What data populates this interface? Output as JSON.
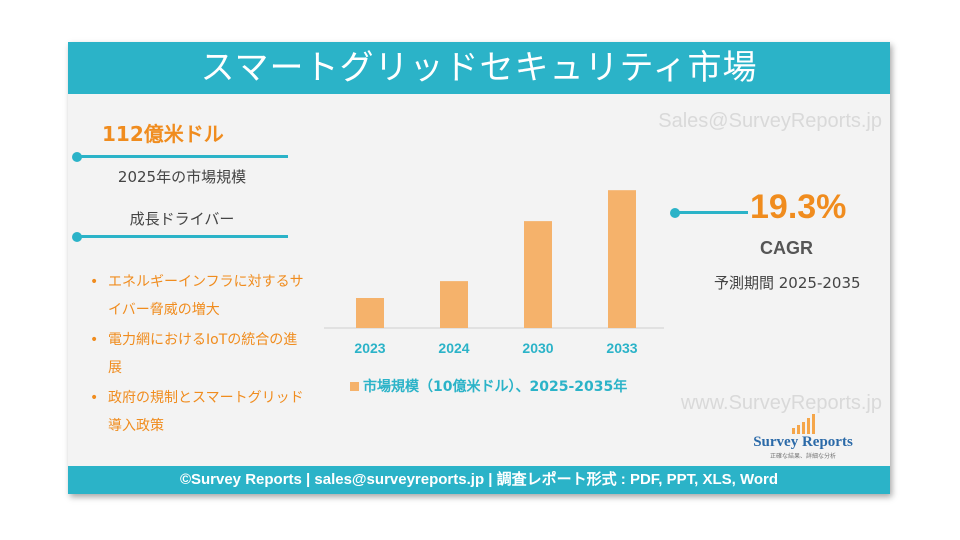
{
  "header": {
    "title": "スマートグリッドセキュリティ市場"
  },
  "watermarks": {
    "top": "Sales@SurveyReports.jp",
    "bottom": "www.SurveyReports.jp"
  },
  "left_panel": {
    "market_value": "112億米ドル",
    "market_value_label": "2025年の市場規模",
    "drivers_heading": "成長ドライバー",
    "bullet_symbol": "•",
    "drivers": [
      "エネルギーインフラに対するサイバー脅威の増大",
      "電力網におけるIoTの統合の進展",
      "政府の規制とスマートグリッド導入政策"
    ]
  },
  "right_panel": {
    "cagr_value": "19.3%",
    "cagr_label": "CAGR",
    "forecast_period": "予測期間 2025-2035"
  },
  "chart_data": {
    "type": "bar",
    "categories": [
      "2023",
      "2024",
      "2030",
      "2033"
    ],
    "values": [
      3.2,
      5.0,
      11.4,
      14.7
    ],
    "ylim": [
      0,
      16
    ],
    "grid": false,
    "legend": "bottom",
    "series": [
      {
        "name": "市場規模（10億米ドル）、2025-2035年",
        "values": [
          3.2,
          5.0,
          11.4,
          14.7
        ]
      }
    ],
    "bar_color": "#f5b26b",
    "label_color": "#2bb3c8"
  },
  "logo": {
    "name": "Survey Reports",
    "tagline": "正確な結果、詳細な分析"
  },
  "footer": {
    "text": "©Survey Reports | sales@surveyreports.jp |  調査レポート形式 : PDF, PPT, XLS, Word"
  },
  "colors": {
    "accent": "#2bb3c8",
    "orange": "#f08c1e"
  }
}
